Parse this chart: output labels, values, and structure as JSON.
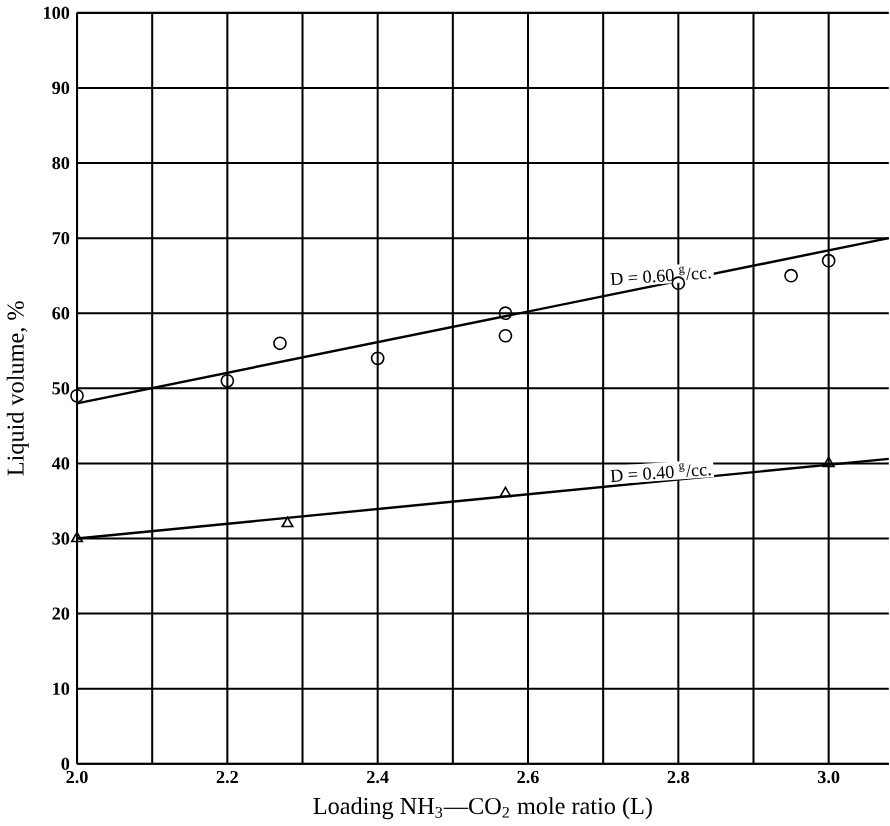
{
  "chart_data": {
    "type": "scatter",
    "xlabel": "Loading NH$_{3}$—CO$_{2}$ mole ratio (L)",
    "ylabel": "Liquid volume, %",
    "xlim": [
      2.0,
      3.08
    ],
    "ylim": [
      0,
      100
    ],
    "xticks": [
      {
        "value": 2.0,
        "label": "2.0"
      },
      {
        "value": 2.1,
        "label": null
      },
      2.2,
      {
        "value": 2.3,
        "label": null
      },
      2.4,
      {
        "value": 2.5,
        "label": null
      },
      2.6,
      {
        "value": 2.7,
        "label": null
      },
      2.8,
      {
        "value": 2.9,
        "label": null
      },
      {
        "value": 3.0,
        "label": "3.0"
      }
    ],
    "yticks": [
      0,
      10,
      20,
      30,
      40,
      50,
      60,
      70,
      80,
      90,
      100
    ],
    "grid": true,
    "series": [
      {
        "marker": "circle",
        "color": "#000000",
        "x": [
          2.0,
          2.2,
          2.27,
          2.4,
          2.57,
          2.57,
          2.8,
          2.95,
          3.0
        ],
        "values": [
          49,
          51,
          56,
          54,
          60,
          57,
          64,
          65,
          67
        ]
      },
      {
        "marker": "triangle",
        "color": "#000000",
        "x": [
          2.0,
          2.28,
          2.57,
          3.0
        ],
        "values": [
          30,
          32,
          36,
          40
        ]
      },
      {
        "type": "line",
        "name": "D = 0.60 $^{g}$/cc.",
        "marker": "none",
        "color": "#000000",
        "x": [
          2.0,
          3.08
        ],
        "values": [
          48,
          70
        ]
      },
      {
        "type": "line",
        "name": "D = 0.40 $^{g}$/cc.",
        "marker": "none",
        "color": "#000000",
        "x": [
          2.0,
          3.08
        ],
        "values": [
          30,
          40.6
        ]
      }
    ]
  }
}
